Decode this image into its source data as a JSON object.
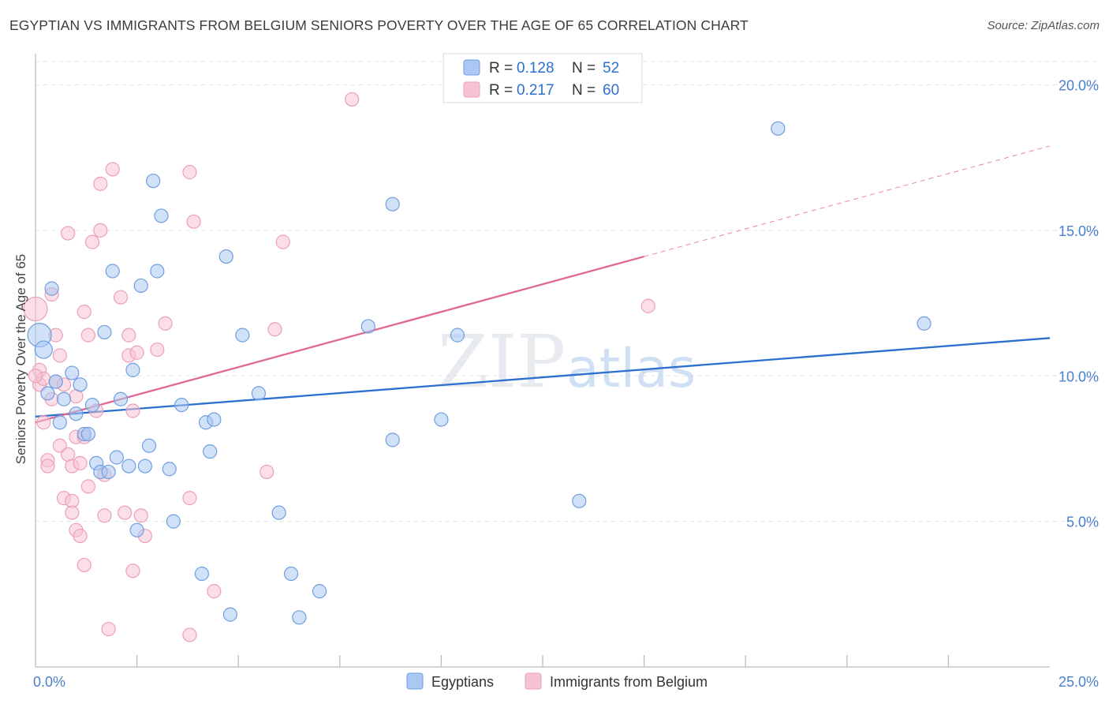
{
  "title": "EGYPTIAN VS IMMIGRANTS FROM BELGIUM SENIORS POVERTY OVER THE AGE OF 65 CORRELATION CHART",
  "source": "Source: ZipAtlas.com",
  "watermark": {
    "zip": "ZIP",
    "atlas": "atlas"
  },
  "legend_top": [
    {
      "r_label": "R =",
      "r_value": "0.128",
      "n_label": "N =",
      "n_value": "52"
    },
    {
      "r_label": "R =",
      "r_value": "0.217",
      "n_label": "N =",
      "n_value": "60"
    }
  ],
  "chart_data": {
    "type": "scatter",
    "title": "EGYPTIAN VS IMMIGRANTS FROM BELGIUM SENIORS POVERTY OVER THE AGE OF 65 CORRELATION CHART",
    "xlabel": "",
    "ylabel": "Seniors Poverty Over the Age of 65",
    "xlim": [
      0,
      25
    ],
    "ylim": [
      0,
      20.8
    ],
    "x_tick_labels": [
      {
        "value": 0,
        "label": "0.0%"
      },
      {
        "value": 25,
        "label": "25.0%"
      }
    ],
    "y_tick_labels": [
      {
        "value": 5,
        "label": "5.0%"
      },
      {
        "value": 10,
        "label": "10.0%"
      },
      {
        "value": 15,
        "label": "15.0%"
      },
      {
        "value": 20,
        "label": "20.0%"
      }
    ],
    "x_minor_ticks": [
      2.5,
      5,
      7.5,
      10,
      12.5,
      15,
      17.5,
      20,
      22.5
    ],
    "grid": true,
    "legend_position": "bottom-center",
    "series": [
      {
        "name": "Egyptians",
        "color": "#6f9de0",
        "fill": "#aac8f2",
        "line_color": "#2b6fcf",
        "R": 0.128,
        "N": 52,
        "trend": {
          "x0": 0,
          "y0": 8.6,
          "x1": 25,
          "y1": 11.3,
          "dashed_from": null
        },
        "points": [
          [
            0.1,
            11.4
          ],
          [
            0.2,
            10.9
          ],
          [
            0.4,
            13.0
          ],
          [
            0.3,
            9.4
          ],
          [
            0.5,
            9.8
          ],
          [
            0.6,
            8.4
          ],
          [
            0.7,
            9.2
          ],
          [
            0.9,
            10.1
          ],
          [
            1.0,
            8.7
          ],
          [
            1.1,
            9.7
          ],
          [
            1.2,
            8.0
          ],
          [
            1.3,
            8.0
          ],
          [
            1.4,
            9.0
          ],
          [
            1.5,
            7.0
          ],
          [
            1.6,
            6.7
          ],
          [
            1.7,
            11.5
          ],
          [
            1.8,
            6.7
          ],
          [
            1.9,
            13.6
          ],
          [
            2.0,
            7.2
          ],
          [
            2.1,
            9.2
          ],
          [
            2.3,
            6.9
          ],
          [
            2.4,
            10.2
          ],
          [
            2.5,
            4.7
          ],
          [
            2.6,
            13.1
          ],
          [
            2.7,
            6.9
          ],
          [
            2.8,
            7.6
          ],
          [
            2.9,
            16.7
          ],
          [
            3.0,
            13.6
          ],
          [
            3.1,
            15.5
          ],
          [
            3.3,
            6.8
          ],
          [
            3.4,
            5.0
          ],
          [
            3.6,
            9.0
          ],
          [
            4.1,
            3.2
          ],
          [
            4.2,
            8.4
          ],
          [
            4.3,
            7.4
          ],
          [
            4.4,
            8.5
          ],
          [
            4.7,
            14.1
          ],
          [
            4.8,
            1.8
          ],
          [
            5.1,
            11.4
          ],
          [
            5.5,
            9.4
          ],
          [
            6.0,
            5.3
          ],
          [
            6.3,
            3.2
          ],
          [
            6.5,
            1.7
          ],
          [
            7.0,
            2.6
          ],
          [
            8.2,
            11.7
          ],
          [
            8.8,
            7.8
          ],
          [
            8.8,
            15.9
          ],
          [
            10.0,
            8.5
          ],
          [
            10.4,
            11.4
          ],
          [
            13.4,
            5.7
          ],
          [
            18.3,
            18.5
          ],
          [
            21.9,
            11.8
          ]
        ]
      },
      {
        "name": "Immigrants from Belgium",
        "color": "#ec9fb8",
        "fill": "#f7c3d3",
        "line_color": "#e06890",
        "R": 0.217,
        "N": 60,
        "trend": {
          "x0": 0,
          "y0": 8.4,
          "x1": 25,
          "y1": 17.9,
          "dashed_from": 15.0
        },
        "points": [
          [
            0.0,
            12.3
          ],
          [
            0.1,
            10.2
          ],
          [
            0.1,
            9.7
          ],
          [
            0.2,
            9.9
          ],
          [
            0.2,
            8.4
          ],
          [
            0.3,
            7.1
          ],
          [
            0.3,
            6.9
          ],
          [
            0.4,
            12.8
          ],
          [
            0.4,
            9.2
          ],
          [
            0.5,
            11.4
          ],
          [
            0.5,
            9.8
          ],
          [
            0.6,
            10.7
          ],
          [
            0.6,
            7.6
          ],
          [
            0.7,
            5.8
          ],
          [
            0.7,
            9.7
          ],
          [
            0.8,
            14.9
          ],
          [
            0.8,
            7.3
          ],
          [
            0.9,
            6.9
          ],
          [
            0.9,
            5.7
          ],
          [
            0.9,
            5.3
          ],
          [
            1.0,
            7.9
          ],
          [
            1.0,
            4.7
          ],
          [
            1.1,
            7.0
          ],
          [
            1.1,
            4.5
          ],
          [
            1.2,
            3.5
          ],
          [
            1.2,
            7.9
          ],
          [
            1.2,
            12.2
          ],
          [
            1.3,
            6.2
          ],
          [
            1.3,
            11.4
          ],
          [
            1.4,
            14.6
          ],
          [
            1.5,
            8.8
          ],
          [
            1.6,
            15.0
          ],
          [
            1.6,
            16.6
          ],
          [
            1.7,
            6.6
          ],
          [
            1.7,
            5.2
          ],
          [
            1.8,
            1.3
          ],
          [
            1.9,
            17.1
          ],
          [
            2.1,
            12.7
          ],
          [
            2.2,
            5.3
          ],
          [
            2.3,
            10.7
          ],
          [
            2.3,
            11.4
          ],
          [
            2.4,
            8.8
          ],
          [
            2.4,
            3.3
          ],
          [
            2.5,
            10.8
          ],
          [
            2.6,
            5.2
          ],
          [
            2.7,
            4.5
          ],
          [
            3.0,
            10.9
          ],
          [
            3.2,
            11.8
          ],
          [
            3.8,
            1.1
          ],
          [
            3.8,
            5.8
          ],
          [
            3.8,
            17.0
          ],
          [
            3.9,
            15.3
          ],
          [
            4.4,
            2.6
          ],
          [
            5.7,
            6.7
          ],
          [
            5.9,
            11.6
          ],
          [
            6.1,
            14.6
          ],
          [
            7.8,
            19.5
          ],
          [
            15.1,
            12.4
          ],
          [
            0.0,
            10.0
          ],
          [
            1.0,
            9.3
          ]
        ]
      }
    ]
  }
}
